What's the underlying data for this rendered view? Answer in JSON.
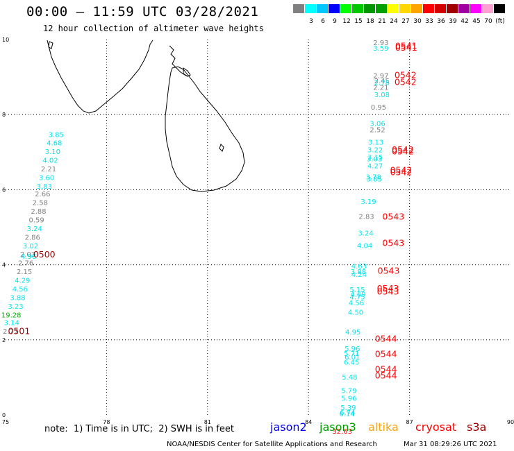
{
  "header": {
    "title": "00:00 – 11:59 UTC 03/28/2021",
    "subtitle": "12 hour collection of altimeter wave heights"
  },
  "legend": {
    "swatches": [
      {
        "color": "#808080",
        "label": ""
      },
      {
        "color": "#00ffff",
        "label": "3"
      },
      {
        "color": "#00c8ff",
        "label": "6"
      },
      {
        "color": "#0000ff",
        "label": "9"
      },
      {
        "color": "#00ff00",
        "label": "12"
      },
      {
        "color": "#00c800",
        "label": "15"
      },
      {
        "color": "#009600",
        "label": "18"
      },
      {
        "color": "#00a000",
        "label": "21"
      },
      {
        "color": "#ffff00",
        "label": "24"
      },
      {
        "color": "#ffd700",
        "label": "27"
      },
      {
        "color": "#ffa500",
        "label": "30"
      },
      {
        "color": "#ff0000",
        "label": "33"
      },
      {
        "color": "#d20000",
        "label": "36"
      },
      {
        "color": "#a00000",
        "label": "39"
      },
      {
        "color": "#a000a0",
        "label": "42"
      },
      {
        "color": "#ff00ff",
        "label": "45"
      },
      {
        "color": "#ffa0d2",
        "label": "70"
      },
      {
        "color": "#000000",
        "label": "(ft)"
      }
    ]
  },
  "axes": {
    "x_ticks": [
      "75",
      "78",
      "81",
      "84",
      "87",
      "90"
    ],
    "y_ticks": [
      "0",
      "2",
      "4",
      "6",
      "8",
      "10"
    ]
  },
  "colors": {
    "gray": "#808080",
    "cyan": "#00e5ee",
    "green": "#00b400",
    "red": "#ff0000",
    "darkred": "#a00000"
  },
  "observations": [
    {
      "lon": 76.5,
      "lat": 7.4,
      "value": "3.85",
      "c": "cyan"
    },
    {
      "lon": 76.45,
      "lat": 7.18,
      "value": "4.68",
      "c": "cyan"
    },
    {
      "lon": 76.4,
      "lat": 6.95,
      "value": "3.10",
      "c": "cyan"
    },
    {
      "lon": 76.33,
      "lat": 6.72,
      "value": "4.02",
      "c": "cyan"
    },
    {
      "lon": 76.28,
      "lat": 6.49,
      "value": "2.21",
      "c": "gray"
    },
    {
      "lon": 76.22,
      "lat": 6.26,
      "value": "3.60",
      "c": "cyan"
    },
    {
      "lon": 76.15,
      "lat": 6.03,
      "value": "3.83",
      "c": "cyan"
    },
    {
      "lon": 76.1,
      "lat": 5.82,
      "value": "2.66",
      "c": "gray"
    },
    {
      "lon": 76.03,
      "lat": 5.59,
      "value": "2.58",
      "c": "gray"
    },
    {
      "lon": 75.98,
      "lat": 5.36,
      "value": "2.88",
      "c": "gray"
    },
    {
      "lon": 75.92,
      "lat": 5.13,
      "value": "0.59",
      "c": "gray"
    },
    {
      "lon": 75.86,
      "lat": 4.9,
      "value": "3.24",
      "c": "cyan"
    },
    {
      "lon": 75.8,
      "lat": 4.67,
      "value": "2.86",
      "c": "gray"
    },
    {
      "lon": 75.74,
      "lat": 4.44,
      "value": "3.02",
      "c": "cyan"
    },
    {
      "lon": 75.66,
      "lat": 4.21,
      "value": "2.03",
      "c": "gray"
    },
    {
      "lon": 75.68,
      "lat": 4.16,
      "value": "4.96",
      "c": "cyan"
    },
    {
      "lon": 75.6,
      "lat": 3.98,
      "value": "2.76",
      "c": "gray"
    },
    {
      "lon": 75.56,
      "lat": 3.75,
      "value": "2.15",
      "c": "gray"
    },
    {
      "lon": 75.5,
      "lat": 3.52,
      "value": "4.29",
      "c": "cyan"
    },
    {
      "lon": 75.43,
      "lat": 3.29,
      "value": "4.56",
      "c": "cyan"
    },
    {
      "lon": 75.36,
      "lat": 3.06,
      "value": "3.88",
      "c": "cyan"
    },
    {
      "lon": 75.3,
      "lat": 2.83,
      "value": "3.23",
      "c": "cyan"
    },
    {
      "lon": 75.17,
      "lat": 2.6,
      "value": "19.28",
      "c": "green"
    },
    {
      "lon": 75.18,
      "lat": 2.39,
      "value": "3.14",
      "c": "cyan"
    },
    {
      "lon": 75.15,
      "lat": 2.16,
      "value": "2.77",
      "c": "gray"
    },
    {
      "lon": 86.15,
      "lat": 9.85,
      "value": "2.93",
      "c": "gray"
    },
    {
      "lon": 86.15,
      "lat": 9.7,
      "value": "3.59",
      "c": "cyan"
    },
    {
      "lon": 86.15,
      "lat": 8.97,
      "value": "2.97",
      "c": "gray"
    },
    {
      "lon": 86.18,
      "lat": 8.84,
      "value": "2.45",
      "c": "gray"
    },
    {
      "lon": 86.18,
      "lat": 8.79,
      "value": "2.78",
      "c": "cyan"
    },
    {
      "lon": 86.15,
      "lat": 8.66,
      "value": "2.21",
      "c": "gray"
    },
    {
      "lon": 86.18,
      "lat": 8.47,
      "value": "3.08",
      "c": "cyan"
    },
    {
      "lon": 86.08,
      "lat": 8.13,
      "value": "0.95",
      "c": "gray"
    },
    {
      "lon": 86.05,
      "lat": 7.7,
      "value": "3.06",
      "c": "cyan"
    },
    {
      "lon": 86.05,
      "lat": 7.53,
      "value": "2.52",
      "c": "gray"
    },
    {
      "lon": 86.0,
      "lat": 7.2,
      "value": "3.13",
      "c": "cyan"
    },
    {
      "lon": 85.98,
      "lat": 7.0,
      "value": "3.22",
      "c": "cyan"
    },
    {
      "lon": 85.98,
      "lat": 6.8,
      "value": "3.15",
      "c": "cyan"
    },
    {
      "lon": 85.96,
      "lat": 6.76,
      "value": "3.03",
      "c": "cyan"
    },
    {
      "lon": 85.98,
      "lat": 6.57,
      "value": "4.27",
      "c": "cyan"
    },
    {
      "lon": 85.93,
      "lat": 6.28,
      "value": "3.78",
      "c": "cyan"
    },
    {
      "lon": 85.95,
      "lat": 6.22,
      "value": "3.85",
      "c": "cyan"
    },
    {
      "lon": 85.78,
      "lat": 5.62,
      "value": "3.19",
      "c": "cyan"
    },
    {
      "lon": 85.72,
      "lat": 5.22,
      "value": "2.83",
      "c": "gray"
    },
    {
      "lon": 85.7,
      "lat": 4.78,
      "value": "3.24",
      "c": "cyan"
    },
    {
      "lon": 85.67,
      "lat": 4.45,
      "value": "4.04",
      "c": "cyan"
    },
    {
      "lon": 85.5,
      "lat": 3.9,
      "value": "4.63",
      "c": "cyan"
    },
    {
      "lon": 85.48,
      "lat": 3.75,
      "value": "3.88",
      "c": "cyan"
    },
    {
      "lon": 85.5,
      "lat": 3.68,
      "value": "4.24",
      "c": "cyan"
    },
    {
      "lon": 85.45,
      "lat": 3.27,
      "value": "5.15",
      "c": "cyan"
    },
    {
      "lon": 85.47,
      "lat": 3.15,
      "value": "4.69",
      "c": "cyan"
    },
    {
      "lon": 85.45,
      "lat": 3.08,
      "value": "4.75",
      "c": "cyan"
    },
    {
      "lon": 85.42,
      "lat": 2.92,
      "value": "4.56",
      "c": "cyan"
    },
    {
      "lon": 85.4,
      "lat": 2.67,
      "value": "4.50",
      "c": "cyan"
    },
    {
      "lon": 85.32,
      "lat": 2.14,
      "value": "4.95",
      "c": "cyan"
    },
    {
      "lon": 85.3,
      "lat": 1.7,
      "value": "5.96",
      "c": "cyan"
    },
    {
      "lon": 85.28,
      "lat": 1.57,
      "value": "5.71",
      "c": "cyan"
    },
    {
      "lon": 85.3,
      "lat": 1.48,
      "value": "6.01",
      "c": "cyan"
    },
    {
      "lon": 85.28,
      "lat": 1.34,
      "value": "6.45",
      "c": "cyan"
    },
    {
      "lon": 85.22,
      "lat": 0.94,
      "value": "5.48",
      "c": "cyan"
    },
    {
      "lon": 85.2,
      "lat": 0.58,
      "value": "5.79",
      "c": "cyan"
    },
    {
      "lon": 85.2,
      "lat": 0.38,
      "value": "5.96",
      "c": "cyan"
    },
    {
      "lon": 85.18,
      "lat": 0.13,
      "value": "5.39",
      "c": "cyan"
    },
    {
      "lon": 85.16,
      "lat": 0.0,
      "value": "6.74",
      "c": "cyan"
    },
    {
      "lon": 85.14,
      "lat": -0.04,
      "value": "6.14",
      "c": "cyan"
    },
    {
      "lon": 85.0,
      "lat": -0.5,
      "value": "32.63",
      "c": "red"
    }
  ],
  "times": [
    {
      "lon": 76.15,
      "lat": 4.2,
      "label": "0500",
      "c": "darkred"
    },
    {
      "lon": 75.4,
      "lat": 2.15,
      "label": "0501",
      "c": "darkred"
    },
    {
      "lon": 86.9,
      "lat": 9.75,
      "label": "0541",
      "c": "red"
    },
    {
      "lon": 86.9,
      "lat": 9.7,
      "label": "0541",
      "c": "red"
    },
    {
      "lon": 86.88,
      "lat": 8.97,
      "label": "0542",
      "c": "red"
    },
    {
      "lon": 86.88,
      "lat": 8.79,
      "label": "0542",
      "c": "red"
    },
    {
      "lon": 86.8,
      "lat": 6.99,
      "label": "0542",
      "c": "red"
    },
    {
      "lon": 86.8,
      "lat": 6.94,
      "label": "0542",
      "c": "red"
    },
    {
      "lon": 86.75,
      "lat": 6.44,
      "label": "0542",
      "c": "red"
    },
    {
      "lon": 86.75,
      "lat": 6.39,
      "label": "0542",
      "c": "red"
    },
    {
      "lon": 86.52,
      "lat": 5.2,
      "label": "0543",
      "c": "red"
    },
    {
      "lon": 86.52,
      "lat": 4.5,
      "label": "0543",
      "c": "red"
    },
    {
      "lon": 86.38,
      "lat": 3.76,
      "label": "0543",
      "c": "red"
    },
    {
      "lon": 86.36,
      "lat": 3.29,
      "label": "0543",
      "c": "red"
    },
    {
      "lon": 86.36,
      "lat": 3.21,
      "label": "0543",
      "c": "red"
    },
    {
      "lon": 86.3,
      "lat": 1.95,
      "label": "0544",
      "c": "red"
    },
    {
      "lon": 86.3,
      "lat": 1.54,
      "label": "0544",
      "c": "red"
    },
    {
      "lon": 86.3,
      "lat": 1.14,
      "label": "0544",
      "c": "red"
    },
    {
      "lon": 86.3,
      "lat": 0.97,
      "label": "0544",
      "c": "red"
    }
  ],
  "footer": {
    "note": "note:  1) Time is in UTC;  2) SWH is in feet",
    "missions": [
      {
        "name": "jason2",
        "color": "#0000ff"
      },
      {
        "name": "jason3",
        "color": "#00a000"
      },
      {
        "name": "altika",
        "color": "#ffa500"
      },
      {
        "name": "cryosat",
        "color": "#ff0000"
      },
      {
        "name": "s3a",
        "color": "#a00000"
      }
    ],
    "credit": "NOAA/NESDIS Center for Satellite Applications and Research",
    "stamp": "Mar 31 08:29:26 UTC 2021"
  }
}
